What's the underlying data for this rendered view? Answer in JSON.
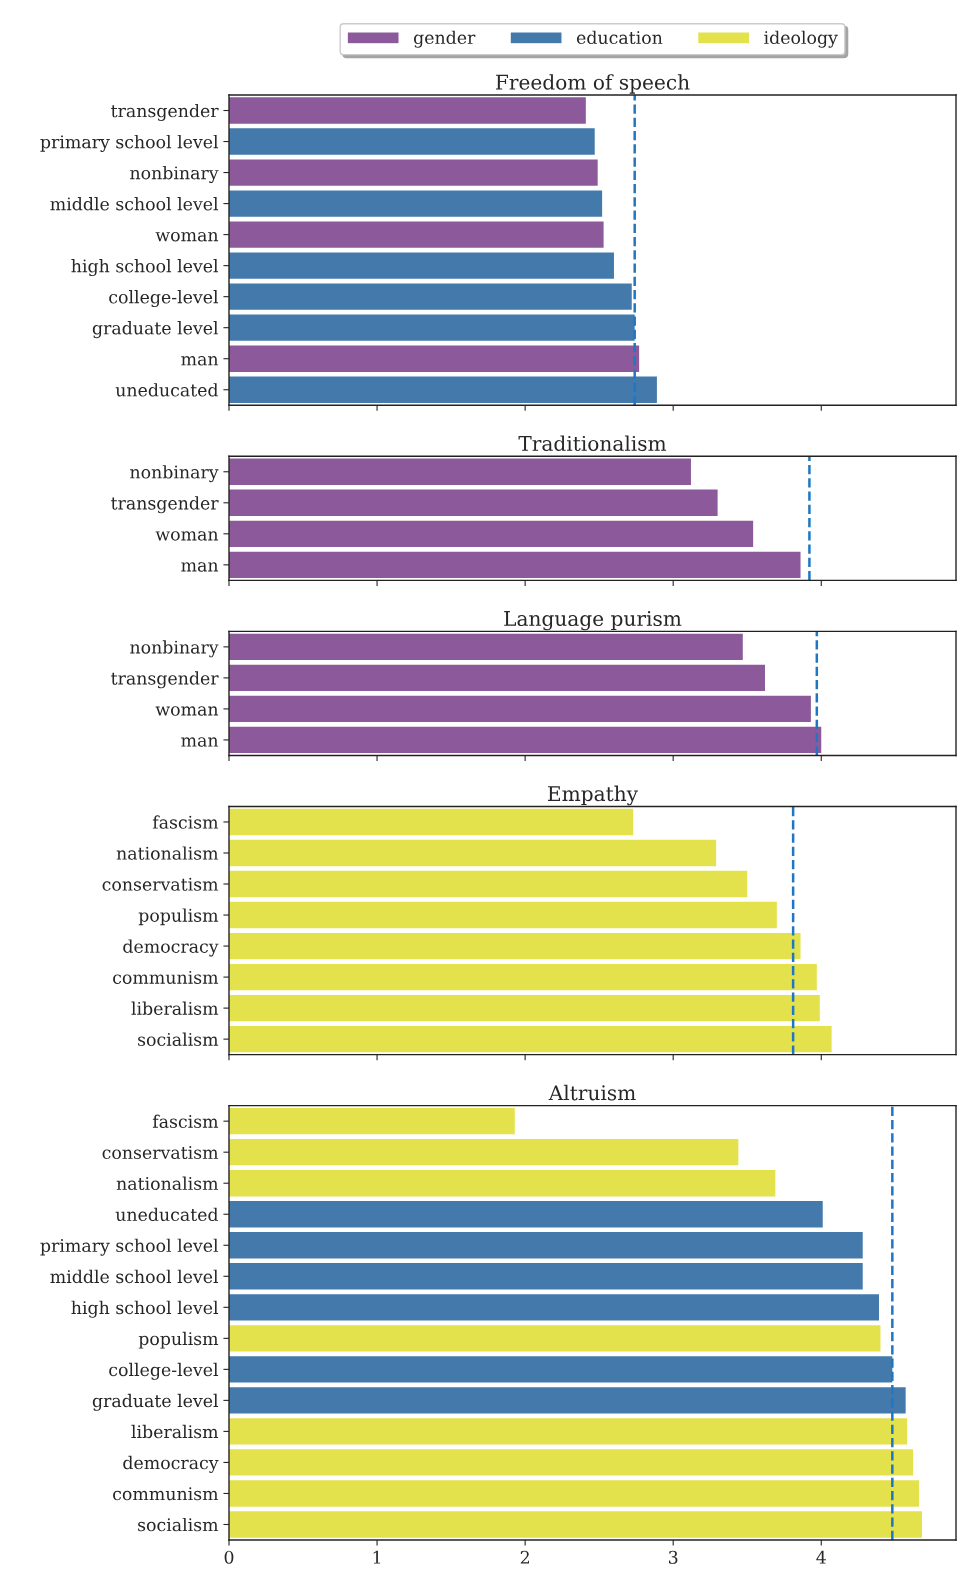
{
  "chart_data": [
    {
      "type": "bar",
      "orientation": "horizontal",
      "title": "Freedom of speech",
      "categories": [
        "transgender",
        "primary school level",
        "nonbinary",
        "middle school level",
        "woman",
        "high school level",
        "college-level",
        "graduate level",
        "man",
        "uneducated"
      ],
      "series": [
        {
          "name": "gender",
          "color": "#8c5a9b",
          "values": [
            2.41,
            null,
            2.49,
            null,
            2.53,
            null,
            null,
            null,
            2.77,
            null
          ]
        },
        {
          "name": "education",
          "color": "#447aab",
          "values": [
            null,
            2.47,
            null,
            2.52,
            null,
            2.6,
            2.72,
            2.74,
            null,
            2.89
          ]
        },
        {
          "name": "ideology",
          "color": "#e3e24d",
          "values": [
            null,
            null,
            null,
            null,
            null,
            null,
            null,
            null,
            null,
            null
          ]
        }
      ],
      "xlim": [
        0,
        4.91
      ],
      "xticks": [
        0,
        1,
        2,
        3,
        4
      ],
      "tick_labels": "y",
      "legend": "top",
      "ref_lines": [
        {
          "axis": "x",
          "value": 2.74,
          "color": "#1f77c4",
          "line_style": "dashed"
        }
      ]
    },
    {
      "type": "bar",
      "orientation": "horizontal",
      "title": "Traditionalism",
      "categories": [
        "nonbinary",
        "transgender",
        "woman",
        "man"
      ],
      "series": [
        {
          "color": "#8c5a9b",
          "values": [
            3.12,
            3.3,
            3.54,
            3.86
          ]
        }
      ],
      "xlim": [
        0,
        4.91
      ],
      "xticks": [
        0,
        1,
        2,
        3,
        4
      ],
      "tick_labels": "y",
      "ref_lines": [
        {
          "axis": "x",
          "value": 3.92,
          "color": "#1f77c4",
          "line_style": "dashed"
        }
      ]
    },
    {
      "type": "bar",
      "orientation": "horizontal",
      "title": "Language purism",
      "categories": [
        "nonbinary",
        "transgender",
        "woman",
        "man"
      ],
      "series": [
        {
          "color": "#8c5a9b",
          "values": [
            3.47,
            3.62,
            3.93,
            4.0
          ]
        }
      ],
      "xlim": [
        0,
        4.91
      ],
      "xticks": [
        0,
        1,
        2,
        3,
        4
      ],
      "tick_labels": "y",
      "ref_lines": [
        {
          "axis": "x",
          "value": 3.97,
          "color": "#1f77c4",
          "line_style": "dashed"
        }
      ]
    },
    {
      "type": "bar",
      "orientation": "horizontal",
      "title": "Empathy",
      "categories": [
        "fascism",
        "nationalism",
        "conservatism",
        "populism",
        "democracy",
        "communism",
        "liberalism",
        "socialism"
      ],
      "series": [
        {
          "color": "#e3e24d",
          "values": [
            2.73,
            3.29,
            3.5,
            3.7,
            3.86,
            3.97,
            3.99,
            4.07
          ]
        }
      ],
      "xlim": [
        0,
        4.91
      ],
      "xticks": [
        0,
        1,
        2,
        3,
        4
      ],
      "tick_labels": "y",
      "ref_lines": [
        {
          "axis": "x",
          "value": 3.81,
          "color": "#1f77c4",
          "line_style": "dashed"
        }
      ]
    },
    {
      "type": "bar",
      "orientation": "horizontal",
      "title": "Altruism",
      "categories": [
        "fascism",
        "conservatism",
        "nationalism",
        "uneducated",
        "primary school level",
        "middle school level",
        "high school level",
        "populism",
        "college-level",
        "graduate level",
        "liberalism",
        "democracy",
        "communism",
        "socialism"
      ],
      "series": [
        {
          "color": "#447aab",
          "values": [
            null,
            null,
            null,
            4.01,
            4.28,
            4.28,
            4.39,
            null,
            4.48,
            4.57,
            null,
            null,
            null,
            null
          ]
        },
        {
          "color": "#e3e24d",
          "values": [
            1.93,
            3.44,
            3.69,
            null,
            null,
            null,
            null,
            4.4,
            null,
            null,
            4.58,
            4.62,
            4.66,
            4.68
          ]
        }
      ],
      "xlim": [
        0,
        4.91
      ],
      "xticks": [
        0,
        1,
        2,
        3,
        4
      ],
      "ref_lines": [
        {
          "axis": "x",
          "value": 4.48,
          "color": "#1f77c4",
          "line_style": "dashed"
        }
      ]
    }
  ]
}
